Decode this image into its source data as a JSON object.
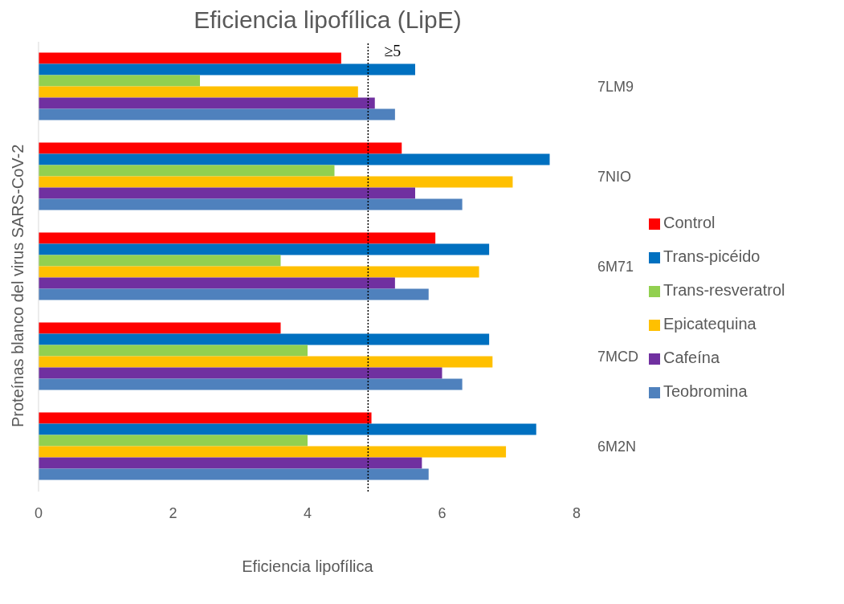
{
  "chart_data": {
    "type": "bar",
    "orientation": "horizontal",
    "title": "Eficiencia lipofílica (LipE)",
    "xlabel": "Eficiencia lipofílica",
    "ylabel": "Proteínas blanco del virus SARS-CoV-2",
    "categories": [
      "7LM9",
      "7NIO",
      "6M71",
      "7MCD",
      "6M2N"
    ],
    "series": [
      {
        "name": "Control",
        "color": "#ff0000",
        "values": [
          4.5,
          5.4,
          5.9,
          3.6,
          4.95
        ]
      },
      {
        "name": "Trans-picéido",
        "color": "#0070c0",
        "values": [
          5.6,
          7.6,
          6.7,
          6.7,
          7.4
        ]
      },
      {
        "name": "Trans-resveratrol",
        "color": "#92d050",
        "values": [
          2.4,
          4.4,
          3.6,
          4.0,
          4.0
        ]
      },
      {
        "name": "Epicatequina",
        "color": "#ffc000",
        "values": [
          4.75,
          7.05,
          6.55,
          6.75,
          6.95
        ]
      },
      {
        "name": "Cafeína",
        "color": "#7030a0",
        "values": [
          5.0,
          5.6,
          5.3,
          6.0,
          5.7
        ]
      },
      {
        "name": "Teobromina",
        "color": "#4f81bd",
        "values": [
          5.3,
          6.3,
          5.8,
          6.3,
          5.8
        ]
      }
    ],
    "xlim": [
      0,
      8
    ],
    "xticks": [
      0,
      2,
      4,
      6,
      8
    ],
    "grid": false,
    "legend": "right",
    "ref_lines": [
      {
        "axis": "x",
        "value": 4.9,
        "label": "≥5",
        "color": "#000000",
        "line_style": "dotted"
      }
    ]
  }
}
